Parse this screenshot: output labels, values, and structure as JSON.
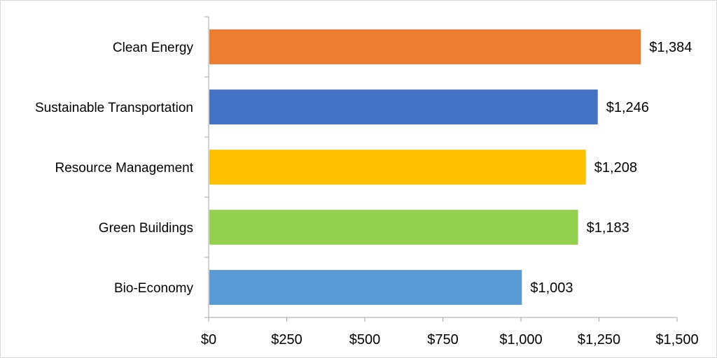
{
  "chart_data": {
    "type": "bar",
    "orientation": "horizontal",
    "title": "",
    "xlabel": "",
    "ylabel": "",
    "categories": [
      "Clean Energy",
      "Sustainable Transportation",
      "Resource Management",
      "Green Buildings",
      "Bio-Economy"
    ],
    "values": [
      1384,
      1246,
      1208,
      1183,
      1003
    ],
    "data_labels": [
      "$1,384",
      "$1,246",
      "$1,208",
      "$1,183",
      "$1,003"
    ],
    "colors": [
      "#ed7d31",
      "#4472c4",
      "#ffc000",
      "#92d050",
      "#5b9bd5"
    ],
    "xlim": [
      0,
      1500
    ],
    "x_ticks": [
      0,
      250,
      500,
      750,
      1000,
      1250,
      1500
    ],
    "x_tick_labels": [
      "$0",
      "$250",
      "$500",
      "$750",
      "$1,000",
      "$1,250",
      "$1,500"
    ],
    "grid": false,
    "legend": "none"
  }
}
